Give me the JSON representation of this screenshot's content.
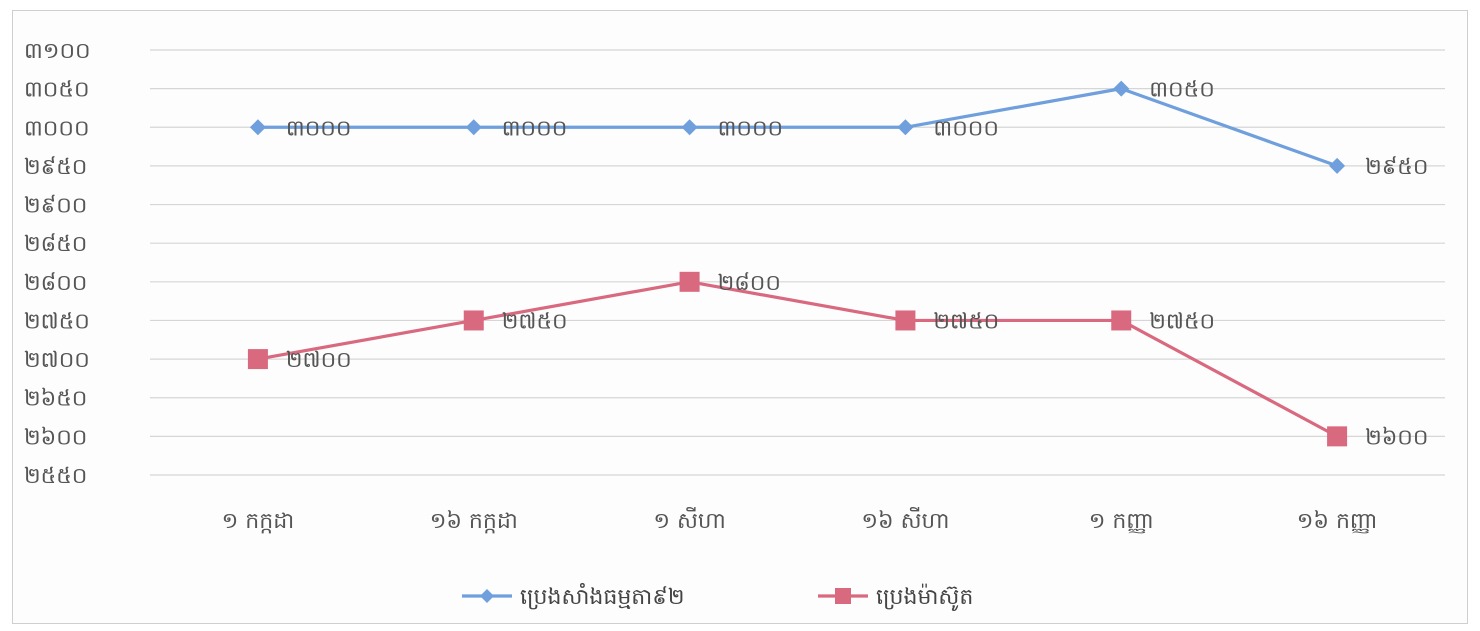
{
  "chart_data": {
    "type": "line",
    "categories": [
      "១ កក្កដា",
      "១៦ កក្កដា",
      "១ សីហា",
      "១៦ សីហា",
      "១ កញ្ញា",
      "១៦ កញ្ញា"
    ],
    "ylim": [
      2550,
      3100
    ],
    "ytick_values": [
      2550,
      2600,
      2650,
      2700,
      2750,
      2800,
      2850,
      2900,
      2950,
      3000,
      3050,
      3100
    ],
    "ytick_labels": [
      "២៥៥០",
      "២៦០០",
      "២៦៥០",
      "២៧០០",
      "២៧៥០",
      "២៨០០",
      "២៨៥០",
      "២៩០០",
      "២៩៥០",
      "៣០០០",
      "៣០៥០",
      "៣១០០"
    ],
    "grid": true,
    "legend_position": "bottom",
    "series": [
      {
        "name": "ប្រេងសាំងធម្មតា៩២",
        "color": "#6f9fdc",
        "marker": "diamond",
        "values": [
          3000,
          3000,
          3000,
          3000,
          3050,
          2950
        ],
        "labels": [
          "៣០០០",
          "៣០០០",
          "៣០០០",
          "៣០០០",
          "៣០៥០",
          "២៩៥០"
        ]
      },
      {
        "name": "ប្រេងម៉ាស៊ូត",
        "color": "#d9697f",
        "marker": "square",
        "values": [
          2700,
          2750,
          2800,
          2750,
          2750,
          2600
        ],
        "labels": [
          "២៧០០",
          "២៧៥០",
          "២៨០០",
          "២៧៥០",
          "២៧៥០",
          "២៦០០"
        ]
      }
    ]
  }
}
